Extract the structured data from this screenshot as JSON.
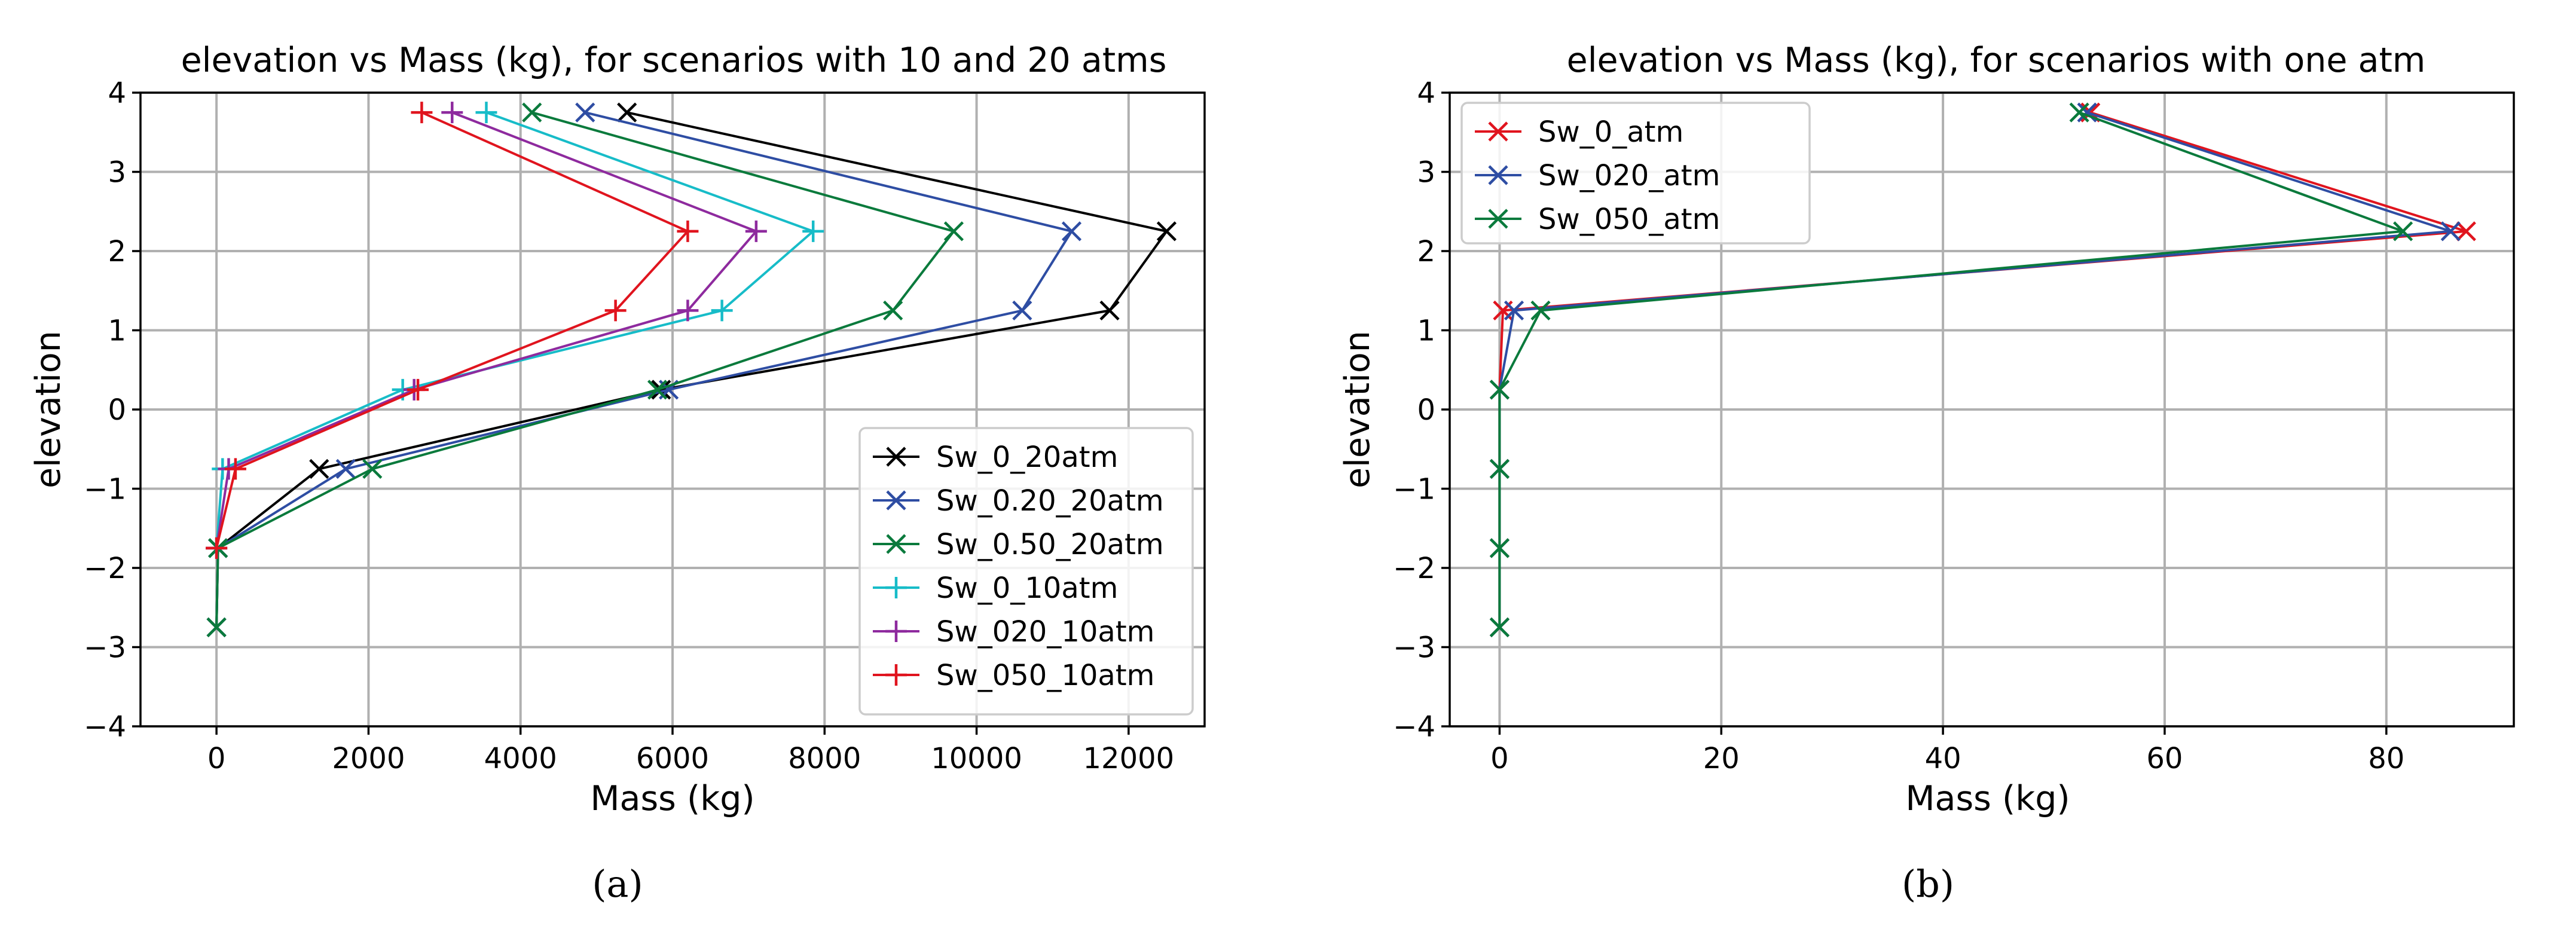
{
  "chart_data": [
    {
      "type": "line",
      "panel_label": "(a)",
      "title": "elevation vs Mass (kg), for scenarios with 10 and 20 atms",
      "xlabel": "Mass (kg)",
      "ylabel": "elevation",
      "xlim": [
        -1000,
        13000
      ],
      "ylim": [
        -4,
        4
      ],
      "xticks": [
        0,
        2000,
        4000,
        6000,
        8000,
        10000,
        12000
      ],
      "yticks": [
        -4,
        -3,
        -2,
        -1,
        0,
        1,
        2,
        3,
        4
      ],
      "xtick_labels": [
        "0",
        "2000",
        "4000",
        "6000",
        "8000",
        "10000",
        "12000"
      ],
      "ytick_labels": [
        "−4",
        "−3",
        "−2",
        "−1",
        "0",
        "1",
        "2",
        "3",
        "4"
      ],
      "grid": true,
      "legend_position": "lower-right",
      "series": [
        {
          "name": "Sw_0_20atm",
          "color": "#000000",
          "marker": "x",
          "points": [
            [
              5400,
              3.75
            ],
            [
              12500,
              2.25
            ],
            [
              11750,
              1.25
            ],
            [
              5850,
              0.25
            ],
            [
              1350,
              -0.75
            ],
            [
              20,
              -1.75
            ],
            [
              0,
              -2.75
            ]
          ]
        },
        {
          "name": "Sw_0.20_20atm",
          "color": "#2e4da3",
          "marker": "x",
          "points": [
            [
              4850,
              3.75
            ],
            [
              11250,
              2.25
            ],
            [
              10600,
              1.25
            ],
            [
              5950,
              0.25
            ],
            [
              1700,
              -0.75
            ],
            [
              20,
              -1.75
            ],
            [
              0,
              -2.75
            ]
          ]
        },
        {
          "name": "Sw_0.50_20atm",
          "color": "#0a7a3c",
          "marker": "x",
          "points": [
            [
              4150,
              3.75
            ],
            [
              9700,
              2.25
            ],
            [
              8900,
              1.25
            ],
            [
              5800,
              0.25
            ],
            [
              2050,
              -0.75
            ],
            [
              20,
              -1.75
            ],
            [
              0,
              -2.75
            ]
          ]
        },
        {
          "name": "Sw_0_10atm",
          "color": "#17bcc8",
          "marker": "+",
          "points": [
            [
              3550,
              3.75
            ],
            [
              7850,
              2.25
            ],
            [
              6650,
              1.25
            ],
            [
              2450,
              0.25
            ],
            [
              80,
              -0.75
            ],
            [
              0,
              -1.75
            ]
          ]
        },
        {
          "name": "Sw_020_10atm",
          "color": "#8e2a9e",
          "marker": "+",
          "points": [
            [
              3100,
              3.75
            ],
            [
              7100,
              2.25
            ],
            [
              6200,
              1.25
            ],
            [
              2600,
              0.25
            ],
            [
              160,
              -0.75
            ],
            [
              0,
              -1.75
            ]
          ]
        },
        {
          "name": "Sw_050_10atm",
          "color": "#e0141e",
          "marker": "+",
          "points": [
            [
              2700,
              3.75
            ],
            [
              6200,
              2.25
            ],
            [
              5250,
              1.25
            ],
            [
              2650,
              0.25
            ],
            [
              250,
              -0.75
            ],
            [
              0,
              -1.75
            ]
          ]
        }
      ]
    },
    {
      "type": "line",
      "panel_label": "(b)",
      "title": "elevation vs Mass (kg), for scenarios with one atm",
      "xlabel": "Mass (kg)",
      "ylabel": "elevation",
      "xlim": [
        -4.5,
        91.5
      ],
      "ylim": [
        -4,
        4
      ],
      "xticks": [
        0,
        20,
        40,
        60,
        80
      ],
      "yticks": [
        -4,
        -3,
        -2,
        -1,
        0,
        1,
        2,
        3,
        4
      ],
      "xtick_labels": [
        "0",
        "20",
        "40",
        "60",
        "80"
      ],
      "ytick_labels": [
        "−4",
        "−3",
        "−2",
        "−1",
        "0",
        "1",
        "2",
        "3",
        "4"
      ],
      "grid": true,
      "legend_position": "upper-left",
      "series": [
        {
          "name": "Sw_0_atm",
          "color": "#e0141e",
          "marker": "x",
          "points": [
            [
              53.3,
              3.75
            ],
            [
              87.2,
              2.25
            ],
            [
              0.3,
              1.25
            ],
            [
              0,
              0.25
            ],
            [
              0,
              -0.75
            ],
            [
              0,
              -1.75
            ],
            [
              0,
              -2.75
            ]
          ]
        },
        {
          "name": "Sw_020_atm",
          "color": "#2e4da3",
          "marker": "x",
          "points": [
            [
              53.0,
              3.75
            ],
            [
              85.8,
              2.25
            ],
            [
              1.3,
              1.25
            ],
            [
              0,
              0.25
            ],
            [
              0,
              -0.75
            ],
            [
              0,
              -1.75
            ],
            [
              0,
              -2.75
            ]
          ]
        },
        {
          "name": "Sw_050_atm",
          "color": "#0a7a3c",
          "marker": "x",
          "points": [
            [
              52.3,
              3.75
            ],
            [
              81.5,
              2.25
            ],
            [
              3.7,
              1.25
            ],
            [
              0,
              0.25
            ],
            [
              0,
              -0.75
            ],
            [
              0,
              -1.75
            ],
            [
              0,
              -2.75
            ]
          ]
        }
      ]
    }
  ]
}
